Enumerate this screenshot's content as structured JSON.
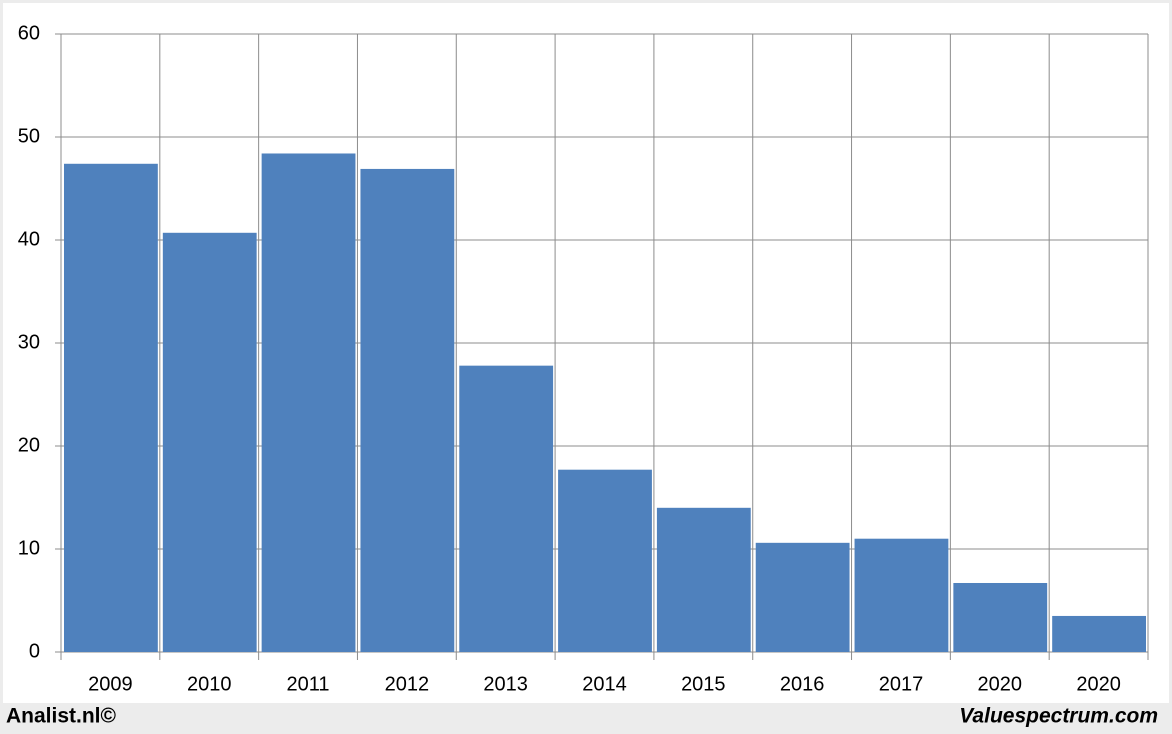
{
  "chart_data": {
    "type": "bar",
    "categories": [
      "2009",
      "2010",
      "2011",
      "2012",
      "2013",
      "2014",
      "2015",
      "2016",
      "2017",
      "2020",
      "2020"
    ],
    "values": [
      47.4,
      40.7,
      48.4,
      46.9,
      27.8,
      17.7,
      14.0,
      10.6,
      11.0,
      6.7,
      3.5
    ],
    "color": "#4f81bd",
    "ylim": [
      0,
      60
    ],
    "yticks": [
      0,
      10,
      20,
      30,
      40,
      50,
      60
    ],
    "grid": true,
    "source_left": "Analist.nl©",
    "source_right": "Valuespectrum.com"
  }
}
